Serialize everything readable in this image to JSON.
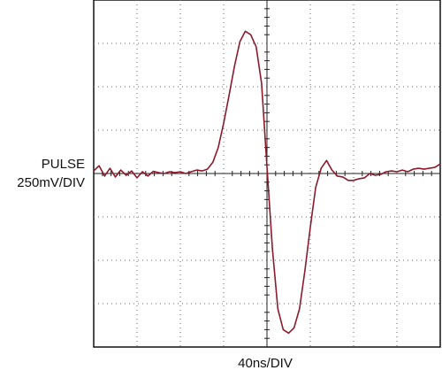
{
  "channel_label": "PULSE",
  "vertical_scale": "250mV/DIV",
  "horizontal_scale": "40ns/DIV",
  "trace_color": "#8b1a2b",
  "grid_color": "#666666",
  "chart_data": {
    "type": "line",
    "title": "",
    "xlabel": "40ns/DIV",
    "ylabel": "PULSE 250mV/DIV",
    "grid": true,
    "xlim": [
      -160,
      160
    ],
    "ylim": [
      -1000,
      1000
    ],
    "x_unit": "ns",
    "y_unit": "mV",
    "series": [
      {
        "values_xy": [
          [
            -160,
            15
          ],
          [
            -155,
            45
          ],
          [
            -150,
            -15
          ],
          [
            -145,
            30
          ],
          [
            -140,
            -20
          ],
          [
            -135,
            20
          ],
          [
            -130,
            -10
          ],
          [
            -125,
            15
          ],
          [
            -120,
            -25
          ],
          [
            -115,
            10
          ],
          [
            -110,
            -15
          ],
          [
            -105,
            12
          ],
          [
            -100,
            5
          ],
          [
            -95,
            0
          ],
          [
            -90,
            10
          ],
          [
            -85,
            5
          ],
          [
            -80,
            10
          ],
          [
            -75,
            0
          ],
          [
            -70,
            10
          ],
          [
            -65,
            20
          ],
          [
            -60,
            15
          ],
          [
            -55,
            25
          ],
          [
            -50,
            65
          ],
          [
            -45,
            150
          ],
          [
            -40,
            290
          ],
          [
            -35,
            450
          ],
          [
            -30,
            620
          ],
          [
            -25,
            760
          ],
          [
            -20,
            820
          ],
          [
            -15,
            800
          ],
          [
            -10,
            730
          ],
          [
            -5,
            520
          ],
          [
            0,
            40
          ],
          [
            5,
            -430
          ],
          [
            10,
            -780
          ],
          [
            15,
            -900
          ],
          [
            20,
            -920
          ],
          [
            25,
            -890
          ],
          [
            30,
            -780
          ],
          [
            35,
            -560
          ],
          [
            40,
            -310
          ],
          [
            45,
            -80
          ],
          [
            50,
            30
          ],
          [
            55,
            75
          ],
          [
            60,
            20
          ],
          [
            65,
            -15
          ],
          [
            70,
            -20
          ],
          [
            75,
            -40
          ],
          [
            80,
            -40
          ],
          [
            85,
            -30
          ],
          [
            90,
            -25
          ],
          [
            95,
            0
          ],
          [
            100,
            -10
          ],
          [
            105,
            -5
          ],
          [
            110,
            10
          ],
          [
            115,
            15
          ],
          [
            120,
            10
          ],
          [
            125,
            20
          ],
          [
            130,
            10
          ],
          [
            135,
            25
          ],
          [
            140,
            30
          ],
          [
            145,
            25
          ],
          [
            150,
            30
          ],
          [
            155,
            35
          ],
          [
            160,
            55
          ]
        ]
      }
    ]
  }
}
